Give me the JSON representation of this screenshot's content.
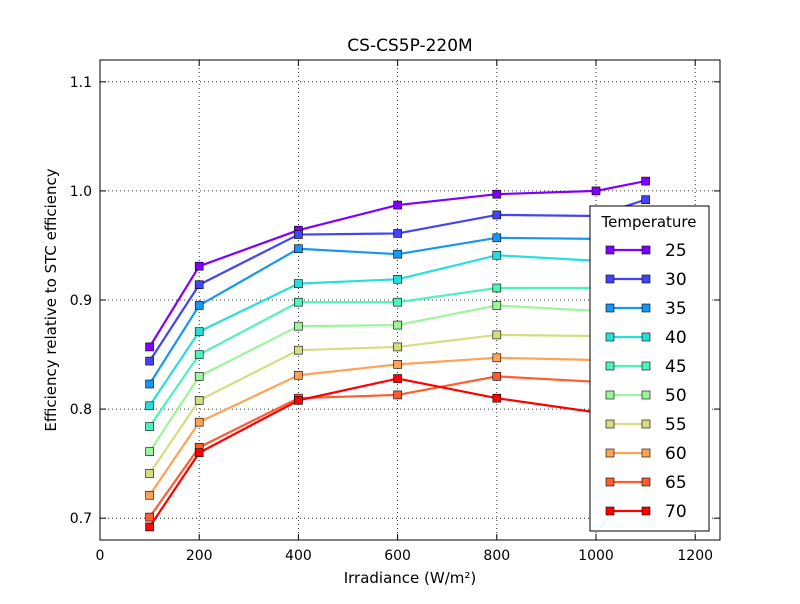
{
  "chart_data": {
    "type": "line",
    "title": "CS-CS5P-220M",
    "xlabel": "Irradiance (W/m²)",
    "ylabel": "Efficiency relative to STC efficiency",
    "xlim": [
      0,
      1250
    ],
    "ylim": [
      0.68,
      1.12
    ],
    "grid": true,
    "x_ticks": [
      0,
      200,
      400,
      600,
      800,
      1000,
      1200
    ],
    "y_ticks": [
      0.7,
      0.8,
      0.9,
      1.0,
      1.1
    ],
    "x_tick_labels": [
      "0",
      "200",
      "400",
      "600",
      "800",
      "1000",
      "1200"
    ],
    "y_tick_labels": [
      "0.7",
      "0.8",
      "0.9",
      "1.0",
      "1.1"
    ],
    "legend": {
      "title": "Temperature",
      "placement": "right"
    },
    "x": [
      100,
      200,
      400,
      600,
      800,
      1000,
      1100
    ],
    "series": [
      {
        "name": "25",
        "color": "#8000ff",
        "values": [
          0.857,
          0.931,
          0.964,
          0.987,
          0.997,
          1.0,
          1.009
        ]
      },
      {
        "name": "30",
        "color": "#4444f7",
        "values": [
          0.844,
          0.914,
          0.96,
          0.961,
          0.978,
          0.977,
          0.992
        ]
      },
      {
        "name": "35",
        "color": "#1996f3",
        "values": [
          0.823,
          0.895,
          0.947,
          0.942,
          0.957,
          0.956,
          0.96
        ]
      },
      {
        "name": "40",
        "color": "#2adddd",
        "values": [
          0.803,
          0.871,
          0.915,
          0.919,
          0.941,
          0.936,
          0.94
        ]
      },
      {
        "name": "45",
        "color": "#4df4b7",
        "values": [
          0.784,
          0.85,
          0.898,
          0.898,
          0.911,
          0.911,
          0.912
        ]
      },
      {
        "name": "50",
        "color": "#9cf59a",
        "values": [
          0.761,
          0.83,
          0.876,
          0.877,
          0.895,
          0.89,
          0.893
        ]
      },
      {
        "name": "55",
        "color": "#d4dd80",
        "values": [
          0.741,
          0.808,
          0.854,
          0.857,
          0.868,
          0.867,
          0.868
        ]
      },
      {
        "name": "60",
        "color": "#ffa256",
        "values": [
          0.721,
          0.788,
          0.831,
          0.841,
          0.847,
          0.845,
          0.846
        ]
      },
      {
        "name": "65",
        "color": "#ff5c2f",
        "values": [
          0.701,
          0.765,
          0.81,
          0.813,
          0.83,
          0.825,
          0.826
        ]
      },
      {
        "name": "70",
        "color": "#ff0000",
        "values": [
          0.692,
          0.76,
          0.808,
          0.828,
          0.81,
          0.797,
          0.797
        ]
      }
    ]
  }
}
